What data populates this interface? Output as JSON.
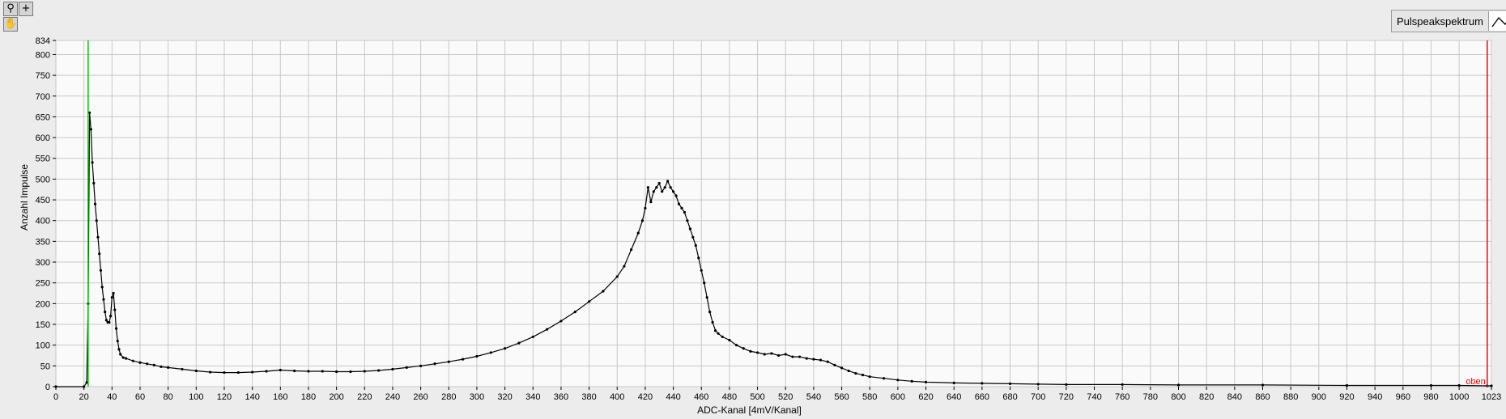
{
  "toolbar": {
    "zoom_icon": "zoom-icon",
    "crosshair_icon": "crosshair-icon",
    "pan_icon": "pan-hand-icon"
  },
  "legend": {
    "label": "Pulspeakspektrum",
    "icon": "line-plot-icon"
  },
  "chart_data": {
    "type": "line",
    "title": "",
    "xlabel": "ADC-Kanal   [4mV/Kanal]",
    "ylabel": "Anzahl Impulse",
    "xlim": [
      0,
      1023
    ],
    "ylim": [
      0,
      834
    ],
    "xticks": [
      0,
      20,
      40,
      60,
      80,
      100,
      120,
      140,
      160,
      180,
      200,
      220,
      240,
      260,
      280,
      300,
      320,
      340,
      360,
      380,
      400,
      420,
      440,
      460,
      480,
      500,
      520,
      540,
      560,
      580,
      600,
      620,
      640,
      660,
      680,
      700,
      720,
      740,
      760,
      780,
      800,
      820,
      840,
      860,
      880,
      900,
      920,
      940,
      960,
      980,
      1000,
      1023
    ],
    "yticks": [
      0,
      50,
      100,
      150,
      200,
      250,
      300,
      350,
      400,
      450,
      500,
      550,
      600,
      650,
      700,
      750,
      800,
      834
    ],
    "grid": true,
    "series": [
      {
        "name": "Pulspeakspektrum",
        "color": "#000000",
        "points": [
          [
            0,
            0
          ],
          [
            20,
            0
          ],
          [
            22,
            10
          ],
          [
            23,
            200
          ],
          [
            24,
            660
          ],
          [
            25,
            620
          ],
          [
            26,
            540
          ],
          [
            27,
            490
          ],
          [
            28,
            440
          ],
          [
            29,
            400
          ],
          [
            30,
            360
          ],
          [
            31,
            320
          ],
          [
            32,
            280
          ],
          [
            33,
            240
          ],
          [
            34,
            210
          ],
          [
            35,
            180
          ],
          [
            36,
            160
          ],
          [
            37,
            155
          ],
          [
            38,
            155
          ],
          [
            39,
            170
          ],
          [
            40,
            215
          ],
          [
            41,
            225
          ],
          [
            42,
            185
          ],
          [
            43,
            140
          ],
          [
            44,
            110
          ],
          [
            45,
            90
          ],
          [
            46,
            78
          ],
          [
            48,
            70
          ],
          [
            50,
            68
          ],
          [
            55,
            62
          ],
          [
            60,
            58
          ],
          [
            65,
            55
          ],
          [
            70,
            52
          ],
          [
            75,
            48
          ],
          [
            80,
            46
          ],
          [
            90,
            42
          ],
          [
            100,
            38
          ],
          [
            110,
            35
          ],
          [
            120,
            34
          ],
          [
            130,
            34
          ],
          [
            140,
            35
          ],
          [
            150,
            37
          ],
          [
            160,
            40
          ],
          [
            170,
            38
          ],
          [
            180,
            37
          ],
          [
            190,
            37
          ],
          [
            200,
            36
          ],
          [
            210,
            36
          ],
          [
            220,
            37
          ],
          [
            230,
            39
          ],
          [
            240,
            42
          ],
          [
            250,
            46
          ],
          [
            260,
            50
          ],
          [
            270,
            55
          ],
          [
            280,
            60
          ],
          [
            290,
            66
          ],
          [
            300,
            73
          ],
          [
            310,
            82
          ],
          [
            320,
            92
          ],
          [
            330,
            105
          ],
          [
            340,
            120
          ],
          [
            350,
            138
          ],
          [
            360,
            158
          ],
          [
            370,
            180
          ],
          [
            380,
            205
          ],
          [
            390,
            230
          ],
          [
            400,
            265
          ],
          [
            405,
            290
          ],
          [
            410,
            330
          ],
          [
            415,
            370
          ],
          [
            418,
            400
          ],
          [
            420,
            430
          ],
          [
            422,
            480
          ],
          [
            424,
            445
          ],
          [
            426,
            470
          ],
          [
            428,
            480
          ],
          [
            430,
            490
          ],
          [
            432,
            470
          ],
          [
            434,
            480
          ],
          [
            436,
            495
          ],
          [
            438,
            480
          ],
          [
            440,
            470
          ],
          [
            442,
            460
          ],
          [
            444,
            440
          ],
          [
            446,
            430
          ],
          [
            448,
            420
          ],
          [
            450,
            400
          ],
          [
            452,
            380
          ],
          [
            454,
            360
          ],
          [
            456,
            340
          ],
          [
            458,
            310
          ],
          [
            460,
            280
          ],
          [
            462,
            250
          ],
          [
            464,
            215
          ],
          [
            466,
            180
          ],
          [
            468,
            155
          ],
          [
            470,
            135
          ],
          [
            472,
            128
          ],
          [
            475,
            120
          ],
          [
            480,
            112
          ],
          [
            485,
            100
          ],
          [
            490,
            92
          ],
          [
            495,
            85
          ],
          [
            500,
            82
          ],
          [
            505,
            78
          ],
          [
            510,
            80
          ],
          [
            515,
            75
          ],
          [
            520,
            78
          ],
          [
            525,
            72
          ],
          [
            530,
            72
          ],
          [
            535,
            68
          ],
          [
            540,
            66
          ],
          [
            545,
            64
          ],
          [
            550,
            60
          ],
          [
            555,
            52
          ],
          [
            560,
            45
          ],
          [
            565,
            38
          ],
          [
            570,
            32
          ],
          [
            575,
            28
          ],
          [
            580,
            24
          ],
          [
            590,
            20
          ],
          [
            600,
            16
          ],
          [
            610,
            13
          ],
          [
            620,
            11
          ],
          [
            640,
            9
          ],
          [
            660,
            8
          ],
          [
            680,
            7
          ],
          [
            700,
            6
          ],
          [
            720,
            5
          ],
          [
            760,
            5
          ],
          [
            800,
            4
          ],
          [
            860,
            4
          ],
          [
            920,
            3
          ],
          [
            980,
            3
          ],
          [
            1000,
            3
          ],
          [
            1020,
            2
          ],
          [
            1023,
            2
          ]
        ]
      }
    ],
    "cursors": [
      {
        "name": "unten",
        "x": 23,
        "color": "#00c800",
        "label": ""
      },
      {
        "name": "oben",
        "x": 1020,
        "color": "#ff0000",
        "label": "oben"
      }
    ]
  }
}
